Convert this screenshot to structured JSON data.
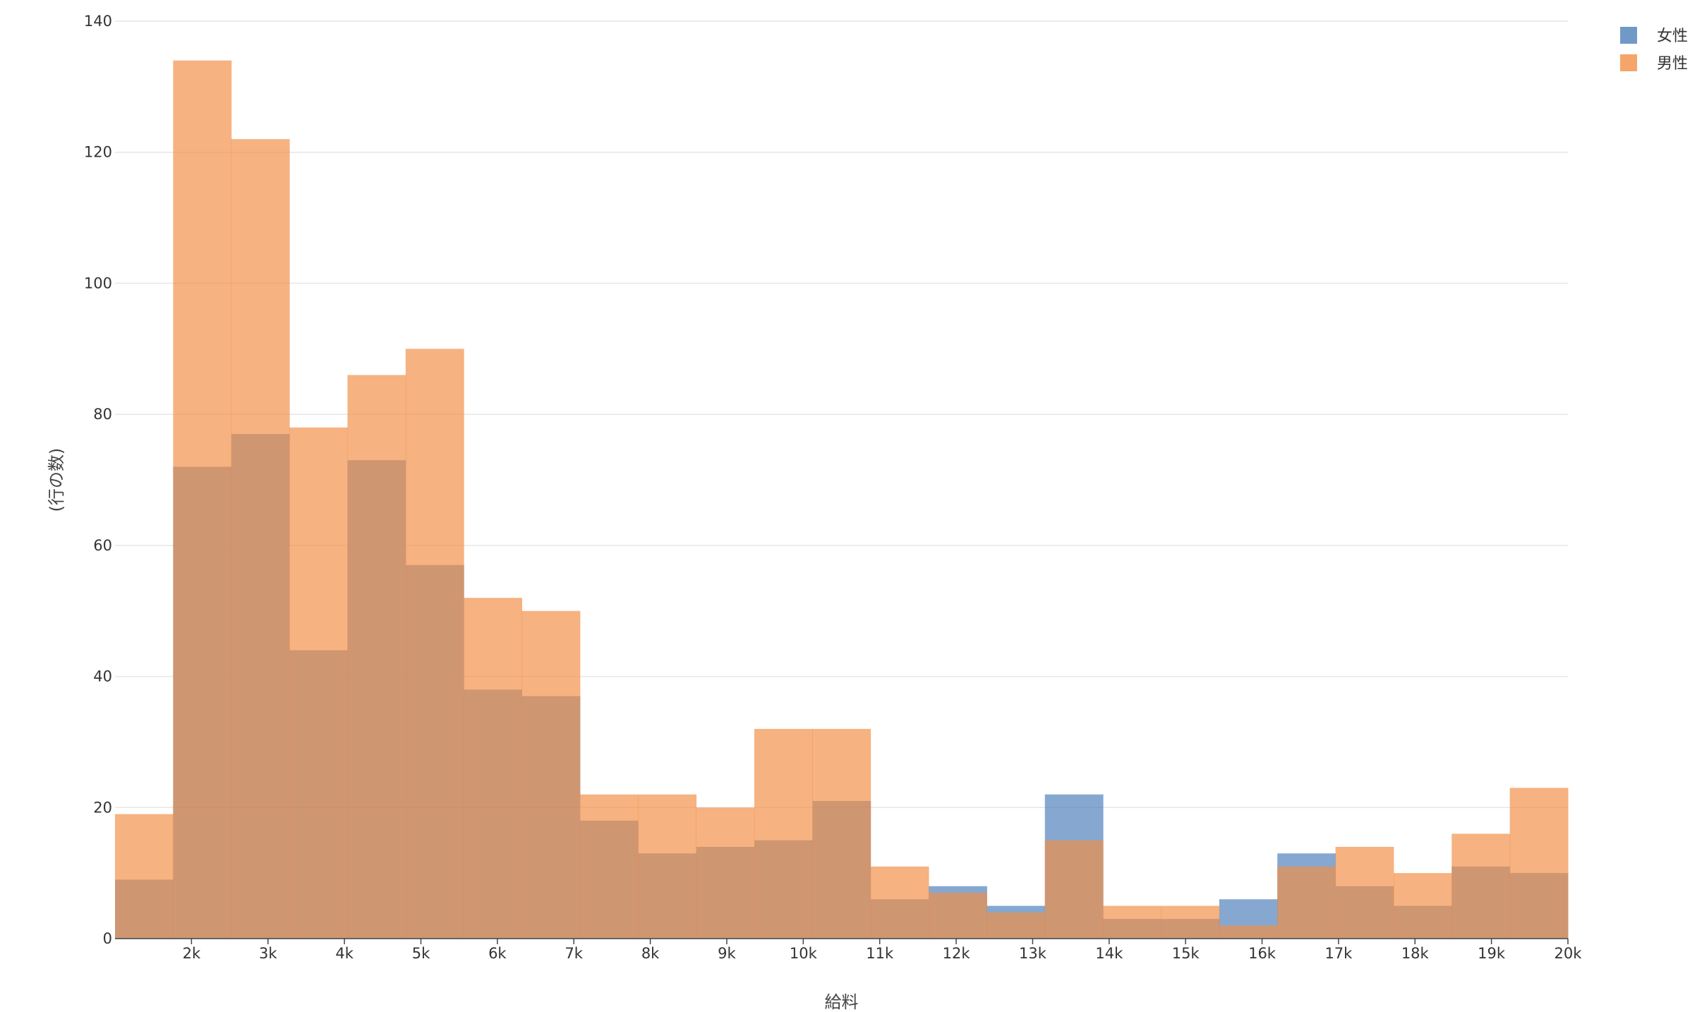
{
  "chart_data": {
    "type": "bar",
    "subtype": "overlaid-histogram",
    "title": "",
    "xlabel": "給料",
    "ylabel": "(行の数)",
    "xlim": [
      1000,
      20000
    ],
    "ylim": [
      0,
      140
    ],
    "bin_width": 760,
    "x_ticks": [
      {
        "value": 2000,
        "label": "2k"
      },
      {
        "value": 3000,
        "label": "3k"
      },
      {
        "value": 4000,
        "label": "4k"
      },
      {
        "value": 5000,
        "label": "5k"
      },
      {
        "value": 6000,
        "label": "6k"
      },
      {
        "value": 7000,
        "label": "7k"
      },
      {
        "value": 8000,
        "label": "8k"
      },
      {
        "value": 9000,
        "label": "9k"
      },
      {
        "value": 10000,
        "label": "10k"
      },
      {
        "value": 11000,
        "label": "11k"
      },
      {
        "value": 12000,
        "label": "12k"
      },
      {
        "value": 13000,
        "label": "13k"
      },
      {
        "value": 14000,
        "label": "14k"
      },
      {
        "value": 15000,
        "label": "15k"
      },
      {
        "value": 16000,
        "label": "16k"
      },
      {
        "value": 17000,
        "label": "17k"
      },
      {
        "value": 18000,
        "label": "18k"
      },
      {
        "value": 19000,
        "label": "19k"
      },
      {
        "value": 20000,
        "label": "20k"
      }
    ],
    "y_ticks": [
      0,
      20,
      40,
      60,
      80,
      100,
      120,
      140
    ],
    "grid": true,
    "legend_position": "top-right",
    "series": [
      {
        "name": "女性",
        "color": "#4c7fba",
        "opacity": 0.68,
        "values": [
          9,
          72,
          77,
          44,
          73,
          57,
          38,
          37,
          18,
          13,
          14,
          15,
          21,
          6,
          8,
          5,
          22,
          3,
          3,
          6,
          13,
          8,
          5,
          11,
          10
        ]
      },
      {
        "name": "男性",
        "color": "#f28e45",
        "opacity": 0.68,
        "values": [
          19,
          134,
          122,
          78,
          86,
          90,
          52,
          50,
          22,
          22,
          20,
          32,
          32,
          11,
          7,
          4,
          15,
          5,
          5,
          2,
          11,
          14,
          10,
          16,
          23
        ]
      }
    ]
  }
}
